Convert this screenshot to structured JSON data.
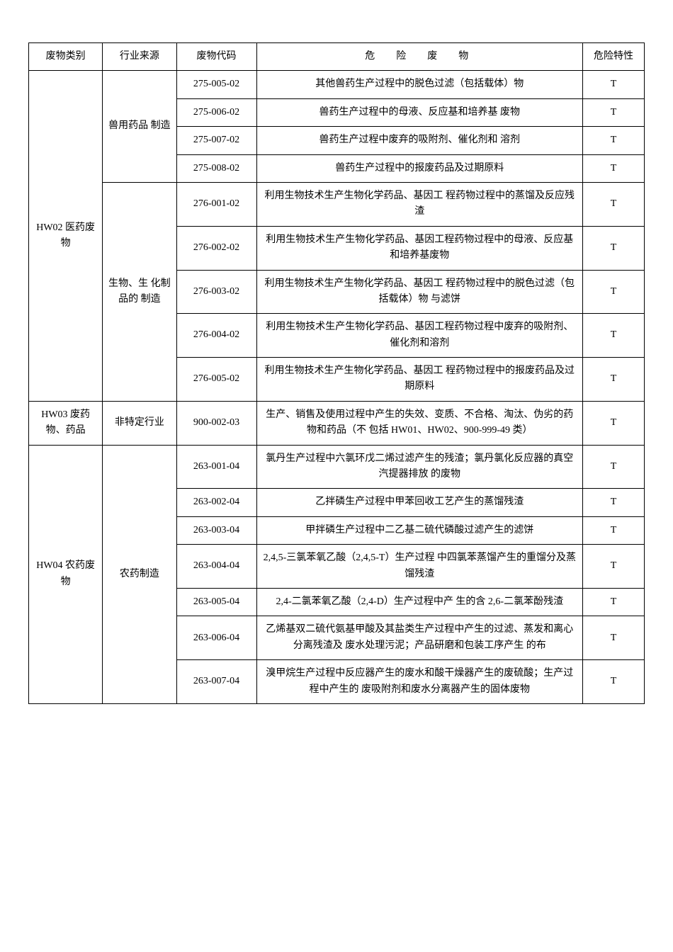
{
  "headers": {
    "category": "废物类别",
    "industry": "行业来源",
    "code": "废物代码",
    "hazard": "危　险　废　物",
    "hazprop": "危险特性"
  },
  "rows": [
    {
      "category": "HW02 医药废物",
      "industry": "兽用药品 制造",
      "code": "275-005-02",
      "hazard": "其他兽药生产过程中的脱色过滤（包括载体）物",
      "hazprop": "T",
      "catRowspan": 9,
      "indRowspan": 4
    },
    {
      "code": "275-006-02",
      "hazard": "兽药生产过程中的母液、反应基和培养基 废物",
      "hazprop": "T"
    },
    {
      "code": "275-007-02",
      "hazard": "兽药生产过程中废弃的吸附剂、催化剂和 溶剂",
      "hazprop": "T"
    },
    {
      "code": "275-008-02",
      "hazard": "兽药生产过程中的报废药品及过期原料",
      "hazprop": "T"
    },
    {
      "industry": "生物、生 化制品的 制造",
      "code": "276-001-02",
      "hazard": "利用生物技术生产生物化学药品、基因工 程药物过程中的蒸馏及反应残渣",
      "hazprop": "T",
      "indRowspan": 5
    },
    {
      "code": "276-002-02",
      "hazard": "利用生物技术生产生物化学药品、基因工程药物过程中的母液、反应基和培养基废物",
      "hazprop": "T"
    },
    {
      "code": "276-003-02",
      "hazard": "利用生物技术生产生物化学药品、基因工 程药物过程中的脱色过滤（包括载体）物 与滤饼",
      "hazprop": "T"
    },
    {
      "code": "276-004-02",
      "hazard": "利用生物技术生产生物化学药品、基因工程药物过程中废弃的吸附剂、催化剂和溶剂",
      "hazprop": "T"
    },
    {
      "code": "276-005-02",
      "hazard": "利用生物技术生产生物化学药品、基因工 程药物过程中的报废药品及过期原料",
      "hazprop": "T"
    },
    {
      "category": "HW03 废药物、药品",
      "industry": "非特定行业",
      "code": "900-002-03",
      "hazard": "生产、销售及使用过程中产生的失效、变质、不合格、淘汰、伪劣的药物和药品（不 包括 HW01、HW02、900-999-49 类）",
      "hazprop": "T",
      "catRowspan": 1,
      "indRowspan": 1
    },
    {
      "category": "HW04 农药废物",
      "industry": "农药制造",
      "code": "263-001-04",
      "hazard": "氯丹生产过程中六氯环戊二烯过滤产生的残渣；氯丹氯化反应器的真空汽提器排放 的废物",
      "hazprop": "T",
      "catRowspan": 7,
      "indRowspan": 7
    },
    {
      "code": "263-002-04",
      "hazard": "乙拌磷生产过程中甲苯回收工艺产生的蒸馏残渣",
      "hazprop": "T"
    },
    {
      "code": "263-003-04",
      "hazard": "甲拌磷生产过程中二乙基二硫代磷酸过滤产生的滤饼",
      "hazprop": "T"
    },
    {
      "code": "263-004-04",
      "hazard": "2,4,5-三氯苯氧乙酸（2,4,5-T）生产过程 中四氯苯蒸馏产生的重馏分及蒸馏残渣",
      "hazprop": "T"
    },
    {
      "code": "263-005-04",
      "hazard": "2,4-二氯苯氧乙酸（2,4-D）生产过程中产 生的含 2,6-二氯苯酚残渣",
      "hazprop": "T"
    },
    {
      "code": "263-006-04",
      "hazard": "乙烯基双二硫代氨基甲酸及其盐类生产过程中产生的过滤、蒸发和离心分离残渣及 废水处理污泥；产品研磨和包装工序产生 的布",
      "hazprop": "T"
    },
    {
      "code": "263-007-04",
      "hazard": "溴甲烷生产过程中反应器产生的废水和酸干燥器产生的废硫酸；生产过程中产生的 废吸附剂和废水分离器产生的固体废物",
      "hazprop": "T"
    }
  ]
}
